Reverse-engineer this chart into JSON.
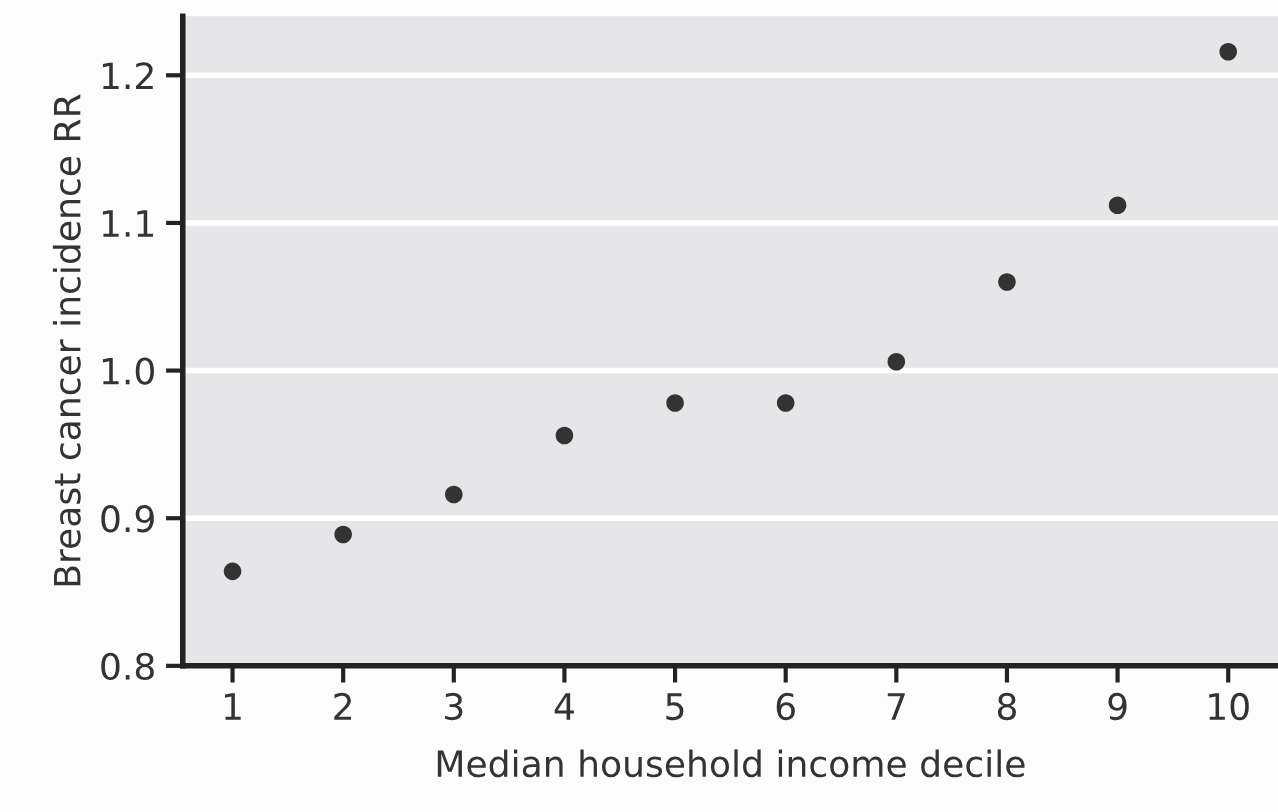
{
  "chart_data": {
    "type": "scatter",
    "xlabel": "Median household income decile",
    "ylabel": "Breast cancer incidence RR",
    "x": [
      1,
      2,
      3,
      4,
      5,
      6,
      7,
      8,
      9,
      10
    ],
    "series": [
      {
        "color": "#333333",
        "values": [
          0.864,
          0.889,
          0.916,
          0.956,
          0.978,
          0.978,
          1.006,
          1.06,
          1.112,
          1.216
        ]
      }
    ],
    "xlim": [
      0.55,
      10.45
    ],
    "xticks": [
      1,
      2,
      3,
      4,
      5,
      6,
      7,
      8,
      9,
      10
    ],
    "ylim": [
      0.8,
      1.24
    ],
    "yticks": [
      0.8,
      0.9,
      {
        "value": 1.0,
        "label": "1.0"
      },
      1.1,
      1.2
    ],
    "grid": "y",
    "marker": "circle",
    "legend": false
  }
}
